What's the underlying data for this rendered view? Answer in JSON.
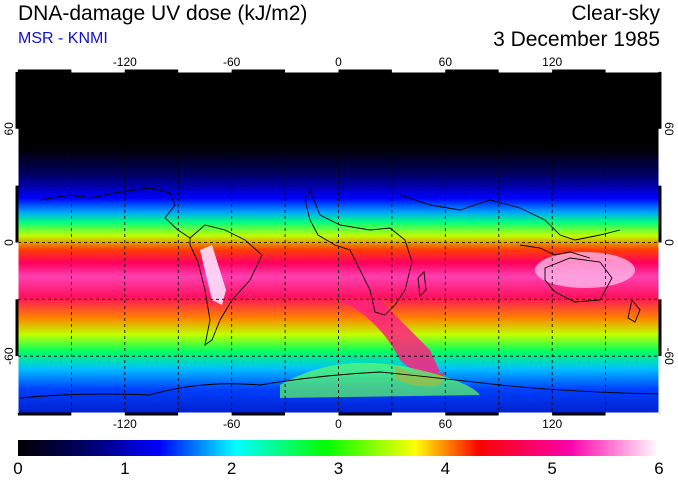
{
  "header": {
    "title": "DNA-damage UV dose (kJ/m2)",
    "source": "MSR - KNMI",
    "condition": "Clear-sky",
    "date": "3 December 1985"
  },
  "axes": {
    "lon_ticks": [
      "-120",
      "-60",
      "0",
      "60",
      "120"
    ],
    "lon_values": [
      -120,
      -60,
      0,
      60,
      120
    ],
    "lat_ticks": [
      "60",
      "0",
      "-60"
    ],
    "lat_values": [
      60,
      0,
      -60
    ],
    "lat_range": [
      -90,
      90
    ],
    "lon_range": [
      -180,
      180
    ]
  },
  "colorbar": {
    "labels": [
      "0",
      "1",
      "2",
      "3",
      "4",
      "5",
      "6"
    ],
    "values": [
      0,
      1,
      2,
      3,
      4,
      5,
      6
    ],
    "stops": [
      "#000000",
      "#000066",
      "#0000ff",
      "#00ffff",
      "#00ff00",
      "#ffff00",
      "#ff0000",
      "#ff00aa",
      "#ffffff"
    ]
  }
}
